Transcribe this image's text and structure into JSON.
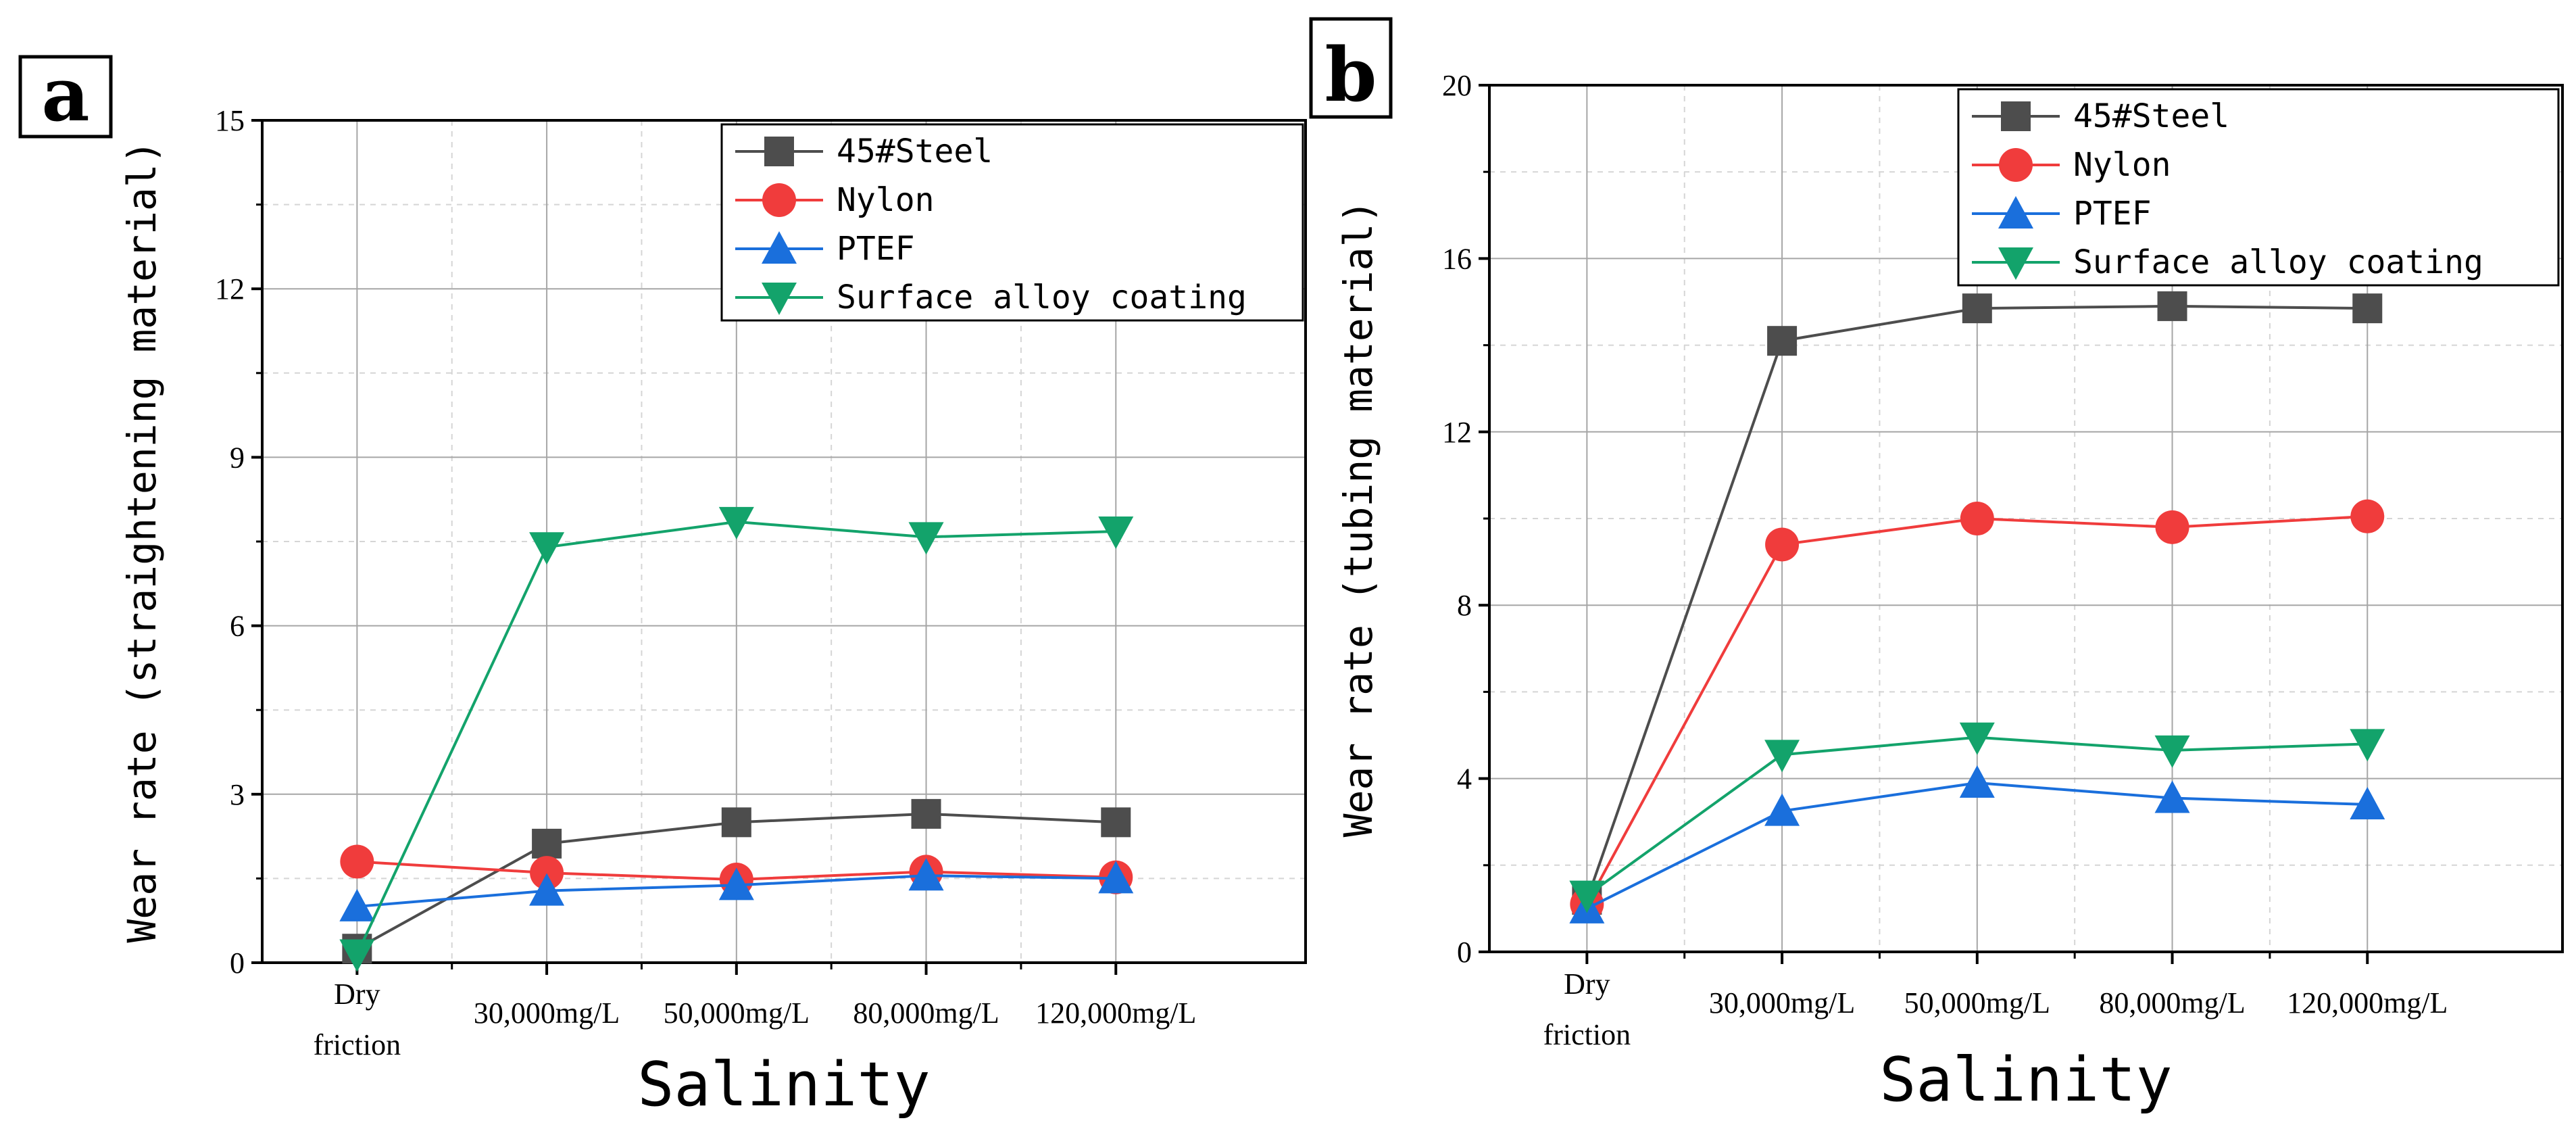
{
  "chart_data": [
    {
      "type": "line",
      "panel_label": "a",
      "categories": [
        "Dry\nfriction",
        "30,000mg/L",
        "50,000mg/L",
        "80,000mg/L",
        "120,000mg/L"
      ],
      "series": [
        {
          "name": "45#Steel",
          "color": "#4d4d4d",
          "marker": "square",
          "values": [
            0.25,
            2.12,
            2.5,
            2.65,
            2.5
          ]
        },
        {
          "name": "Nylon",
          "color": "#f03c3c",
          "marker": "circle",
          "values": [
            1.8,
            1.6,
            1.48,
            1.62,
            1.52
          ]
        },
        {
          "name": "PTEF",
          "color": "#1a6fdc",
          "marker": "triangle-up",
          "values": [
            1.0,
            1.28,
            1.38,
            1.55,
            1.5
          ]
        },
        {
          "name": "Surface alloy coating",
          "color": "#13a36b",
          "marker": "triangle-down",
          "values": [
            0.15,
            7.4,
            7.85,
            7.58,
            7.68
          ]
        }
      ],
      "xlabel": "Salinity",
      "ylabel": "Wear rate (straightening material)",
      "ylim": [
        0,
        15
      ],
      "yticks": [
        "0",
        "3",
        "6",
        "9",
        "12",
        "15"
      ],
      "grid": true,
      "legend": "top-right"
    },
    {
      "type": "line",
      "panel_label": "b",
      "categories": [
        "Dry\nfriction",
        "30,000mg/L",
        "50,000mg/L",
        "80,000mg/L",
        "120,000mg/L"
      ],
      "series": [
        {
          "name": "45#Steel",
          "color": "#4d4d4d",
          "marker": "square",
          "values": [
            1.2,
            14.1,
            14.85,
            14.9,
            14.85
          ]
        },
        {
          "name": "Nylon",
          "color": "#f03c3c",
          "marker": "circle",
          "values": [
            1.1,
            9.4,
            10.0,
            9.8,
            10.05
          ]
        },
        {
          "name": "PTEF",
          "color": "#1a6fdc",
          "marker": "triangle-up",
          "values": [
            1.0,
            3.25,
            3.9,
            3.55,
            3.4
          ]
        },
        {
          "name": "Surface alloy coating",
          "color": "#13a36b",
          "marker": "triangle-down",
          "values": [
            1.3,
            4.55,
            4.95,
            4.65,
            4.8
          ]
        }
      ],
      "xlabel": "Salinity",
      "ylabel": "Wear rate (tubing material)",
      "ylim": [
        0,
        20
      ],
      "yticks": [
        "0",
        "4",
        "8",
        "12",
        "16",
        "20"
      ],
      "grid": true,
      "legend": "top-right"
    }
  ]
}
